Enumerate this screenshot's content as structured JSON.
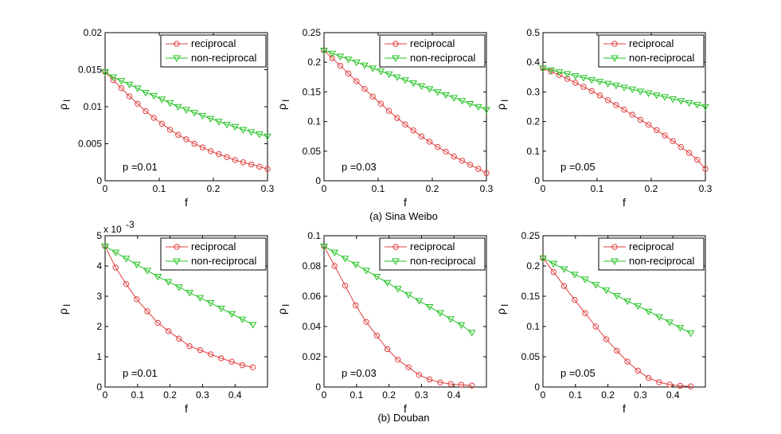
{
  "figure": {
    "caption_top": "(a) Sina Weibo",
    "caption_bottom": "(b) Douban"
  },
  "colors": {
    "reciprocal": "#e04040",
    "non_reciprocal": "#22c322",
    "axis": "#000000"
  },
  "chart_data": [
    {
      "type": "line",
      "row": "top",
      "xlabel": "f",
      "ylabel": "ρ",
      "ylabel_sub": "I",
      "xlim": [
        0,
        0.3
      ],
      "ylim": [
        0,
        0.02
      ],
      "xticks": [
        "0",
        "0.1",
        "0.2",
        "0.3"
      ],
      "yticks": [
        "0",
        "0.005",
        "0.01",
        "0.015",
        "0.02"
      ],
      "annotation": "p =0.01",
      "exponent_label": "",
      "legend": [
        "reciprocal",
        "non-reciprocal"
      ],
      "series": [
        {
          "name": "reciprocal",
          "marker": "circle",
          "x": [
            0,
            0.015,
            0.03,
            0.045,
            0.06,
            0.075,
            0.09,
            0.105,
            0.12,
            0.135,
            0.15,
            0.165,
            0.18,
            0.195,
            0.21,
            0.225,
            0.24,
            0.255,
            0.27,
            0.285,
            0.3
          ],
          "values": [
            0.0147,
            0.0136,
            0.0125,
            0.0114,
            0.0104,
            0.0094,
            0.0085,
            0.0077,
            0.0069,
            0.0062,
            0.0056,
            0.005,
            0.0045,
            0.004,
            0.0036,
            0.0032,
            0.0028,
            0.0025,
            0.0022,
            0.0019,
            0.0016
          ]
        },
        {
          "name": "non-reciprocal",
          "marker": "triangle-down",
          "x": [
            0,
            0.015,
            0.03,
            0.045,
            0.06,
            0.075,
            0.09,
            0.105,
            0.12,
            0.135,
            0.15,
            0.165,
            0.18,
            0.195,
            0.21,
            0.225,
            0.24,
            0.255,
            0.27,
            0.285,
            0.3
          ],
          "values": [
            0.0147,
            0.014,
            0.0135,
            0.013,
            0.0125,
            0.0119,
            0.0115,
            0.011,
            0.0105,
            0.01,
            0.0096,
            0.0092,
            0.0088,
            0.0084,
            0.008,
            0.0076,
            0.0073,
            0.0069,
            0.0066,
            0.0063,
            0.006
          ]
        }
      ]
    },
    {
      "type": "line",
      "row": "top",
      "xlabel": "f",
      "ylabel": "ρ",
      "ylabel_sub": "I",
      "xlim": [
        0,
        0.3
      ],
      "ylim": [
        0,
        0.25
      ],
      "xticks": [
        "0",
        "0.1",
        "0.2",
        "0.3"
      ],
      "yticks": [
        "0",
        "0.05",
        "0.1",
        "0.15",
        "0.2",
        "0.25"
      ],
      "annotation": "p =0.03",
      "exponent_label": "",
      "legend": [
        "reciprocal",
        "non-reciprocal"
      ],
      "series": [
        {
          "name": "reciprocal",
          "marker": "circle",
          "x": [
            0,
            0.015,
            0.03,
            0.045,
            0.06,
            0.075,
            0.09,
            0.105,
            0.12,
            0.135,
            0.15,
            0.165,
            0.18,
            0.195,
            0.21,
            0.225,
            0.24,
            0.255,
            0.27,
            0.285,
            0.3
          ],
          "values": [
            0.22,
            0.207,
            0.194,
            0.181,
            0.168,
            0.155,
            0.142,
            0.13,
            0.118,
            0.106,
            0.095,
            0.085,
            0.075,
            0.066,
            0.057,
            0.049,
            0.041,
            0.034,
            0.027,
            0.02,
            0.013
          ]
        },
        {
          "name": "non-reciprocal",
          "marker": "triangle-down",
          "x": [
            0,
            0.015,
            0.03,
            0.045,
            0.06,
            0.075,
            0.09,
            0.105,
            0.12,
            0.135,
            0.15,
            0.165,
            0.18,
            0.195,
            0.21,
            0.225,
            0.24,
            0.255,
            0.27,
            0.285,
            0.3
          ],
          "values": [
            0.22,
            0.215,
            0.21,
            0.205,
            0.2,
            0.195,
            0.19,
            0.185,
            0.18,
            0.175,
            0.17,
            0.165,
            0.16,
            0.155,
            0.15,
            0.145,
            0.14,
            0.135,
            0.13,
            0.125,
            0.12
          ]
        }
      ]
    },
    {
      "type": "line",
      "row": "top",
      "xlabel": "f",
      "ylabel": "ρ",
      "ylabel_sub": "I",
      "xlim": [
        0,
        0.3
      ],
      "ylim": [
        0,
        0.5
      ],
      "xticks": [
        "0",
        "0.1",
        "0.2",
        "0.3"
      ],
      "yticks": [
        "0",
        "0.1",
        "0.2",
        "0.3",
        "0.4",
        "0.5"
      ],
      "annotation": "p =0.05",
      "exponent_label": "",
      "legend": [
        "reciprocal",
        "non-reciprocal"
      ],
      "series": [
        {
          "name": "reciprocal",
          "marker": "circle",
          "x": [
            0,
            0.015,
            0.03,
            0.045,
            0.06,
            0.075,
            0.09,
            0.105,
            0.12,
            0.135,
            0.15,
            0.165,
            0.18,
            0.195,
            0.21,
            0.225,
            0.24,
            0.255,
            0.27,
            0.285,
            0.3
          ],
          "values": [
            0.38,
            0.369,
            0.357,
            0.344,
            0.331,
            0.317,
            0.303,
            0.288,
            0.272,
            0.256,
            0.24,
            0.223,
            0.206,
            0.189,
            0.171,
            0.153,
            0.134,
            0.114,
            0.094,
            0.071,
            0.04
          ]
        },
        {
          "name": "non-reciprocal",
          "marker": "triangle-down",
          "x": [
            0,
            0.015,
            0.03,
            0.045,
            0.06,
            0.075,
            0.09,
            0.105,
            0.12,
            0.135,
            0.15,
            0.165,
            0.18,
            0.195,
            0.21,
            0.225,
            0.24,
            0.255,
            0.27,
            0.285,
            0.3
          ],
          "values": [
            0.38,
            0.374,
            0.367,
            0.361,
            0.354,
            0.348,
            0.341,
            0.335,
            0.328,
            0.322,
            0.315,
            0.309,
            0.302,
            0.296,
            0.289,
            0.283,
            0.276,
            0.27,
            0.263,
            0.257,
            0.25
          ]
        }
      ]
    },
    {
      "type": "line",
      "row": "bottom",
      "xlabel": "f",
      "ylabel": "ρ",
      "ylabel_sub": "I",
      "xlim": [
        0,
        0.5
      ],
      "ylim": [
        0,
        5
      ],
      "xticks": [
        "0",
        "0.1",
        "0.2",
        "0.3",
        "0.4"
      ],
      "yticks": [
        "0",
        "1",
        "2",
        "3",
        "4",
        "5"
      ],
      "annotation": "p =0.01",
      "exponent_label": "x 10",
      "exponent_power": "-3",
      "legend": [
        "reciprocal",
        "non-reciprocal"
      ],
      "series": [
        {
          "name": "reciprocal",
          "marker": "circle",
          "x": [
            0,
            0.0325,
            0.065,
            0.0975,
            0.13,
            0.1625,
            0.195,
            0.2275,
            0.26,
            0.2925,
            0.325,
            0.3575,
            0.39,
            0.4225,
            0.455
          ],
          "values": [
            4.65,
            3.95,
            3.4,
            2.9,
            2.5,
            2.12,
            1.85,
            1.6,
            1.35,
            1.22,
            1.08,
            0.95,
            0.84,
            0.72,
            0.65
          ]
        },
        {
          "name": "non-reciprocal",
          "marker": "triangle-down",
          "x": [
            0,
            0.0325,
            0.065,
            0.0975,
            0.13,
            0.1625,
            0.195,
            0.2275,
            0.26,
            0.2925,
            0.325,
            0.3575,
            0.39,
            0.4225,
            0.455
          ],
          "values": [
            4.65,
            4.45,
            4.25,
            4.05,
            3.85,
            3.65,
            3.48,
            3.3,
            3.12,
            2.95,
            2.78,
            2.6,
            2.42,
            2.24,
            2.06
          ]
        }
      ]
    },
    {
      "type": "line",
      "row": "bottom",
      "xlabel": "f",
      "ylabel": "ρ",
      "ylabel_sub": "I",
      "xlim": [
        0,
        0.5
      ],
      "ylim": [
        0,
        0.1
      ],
      "xticks": [
        "0",
        "0.1",
        "0.2",
        "0.3",
        "0.4"
      ],
      "yticks": [
        "0",
        "0.02",
        "0.04",
        "0.06",
        "0.08",
        "0.1"
      ],
      "annotation": "p =0.03",
      "exponent_label": "",
      "legend": [
        "reciprocal",
        "non-reciprocal"
      ],
      "series": [
        {
          "name": "reciprocal",
          "marker": "circle",
          "x": [
            0,
            0.0325,
            0.065,
            0.0975,
            0.13,
            0.1625,
            0.195,
            0.2275,
            0.26,
            0.2925,
            0.325,
            0.3575,
            0.39,
            0.4225,
            0.455
          ],
          "values": [
            0.093,
            0.08,
            0.067,
            0.054,
            0.043,
            0.034,
            0.025,
            0.018,
            0.013,
            0.008,
            0.005,
            0.003,
            0.002,
            0.0015,
            0.001
          ]
        },
        {
          "name": "non-reciprocal",
          "marker": "triangle-down",
          "x": [
            0,
            0.0325,
            0.065,
            0.0975,
            0.13,
            0.1625,
            0.195,
            0.2275,
            0.26,
            0.2925,
            0.325,
            0.3575,
            0.39,
            0.4225,
            0.455
          ],
          "values": [
            0.093,
            0.089,
            0.085,
            0.081,
            0.077,
            0.073,
            0.069,
            0.065,
            0.061,
            0.057,
            0.053,
            0.049,
            0.045,
            0.041,
            0.036
          ]
        }
      ]
    },
    {
      "type": "line",
      "row": "bottom",
      "xlabel": "f",
      "ylabel": "ρ",
      "ylabel_sub": "I",
      "xlim": [
        0,
        0.5
      ],
      "ylim": [
        0,
        0.25
      ],
      "xticks": [
        "0",
        "0.1",
        "0.2",
        "0.3",
        "0.4"
      ],
      "yticks": [
        "0",
        "0.05",
        "0.1",
        "0.15",
        "0.2",
        "0.25"
      ],
      "annotation": "p =0.05",
      "exponent_label": "",
      "legend": [
        "reciprocal",
        "non-reciprocal"
      ],
      "series": [
        {
          "name": "reciprocal",
          "marker": "circle",
          "x": [
            0,
            0.0325,
            0.065,
            0.0975,
            0.13,
            0.1625,
            0.195,
            0.2275,
            0.26,
            0.2925,
            0.325,
            0.3575,
            0.39,
            0.4225,
            0.455
          ],
          "values": [
            0.213,
            0.19,
            0.167,
            0.144,
            0.122,
            0.1,
            0.079,
            0.06,
            0.042,
            0.027,
            0.015,
            0.008,
            0.004,
            0.002,
            0.001
          ]
        },
        {
          "name": "non-reciprocal",
          "marker": "triangle-down",
          "x": [
            0,
            0.0325,
            0.065,
            0.0975,
            0.13,
            0.1625,
            0.195,
            0.2275,
            0.26,
            0.2925,
            0.325,
            0.3575,
            0.39,
            0.4225,
            0.455
          ],
          "values": [
            0.213,
            0.204,
            0.195,
            0.186,
            0.178,
            0.169,
            0.16,
            0.151,
            0.142,
            0.134,
            0.125,
            0.116,
            0.107,
            0.098,
            0.089
          ]
        }
      ]
    }
  ]
}
